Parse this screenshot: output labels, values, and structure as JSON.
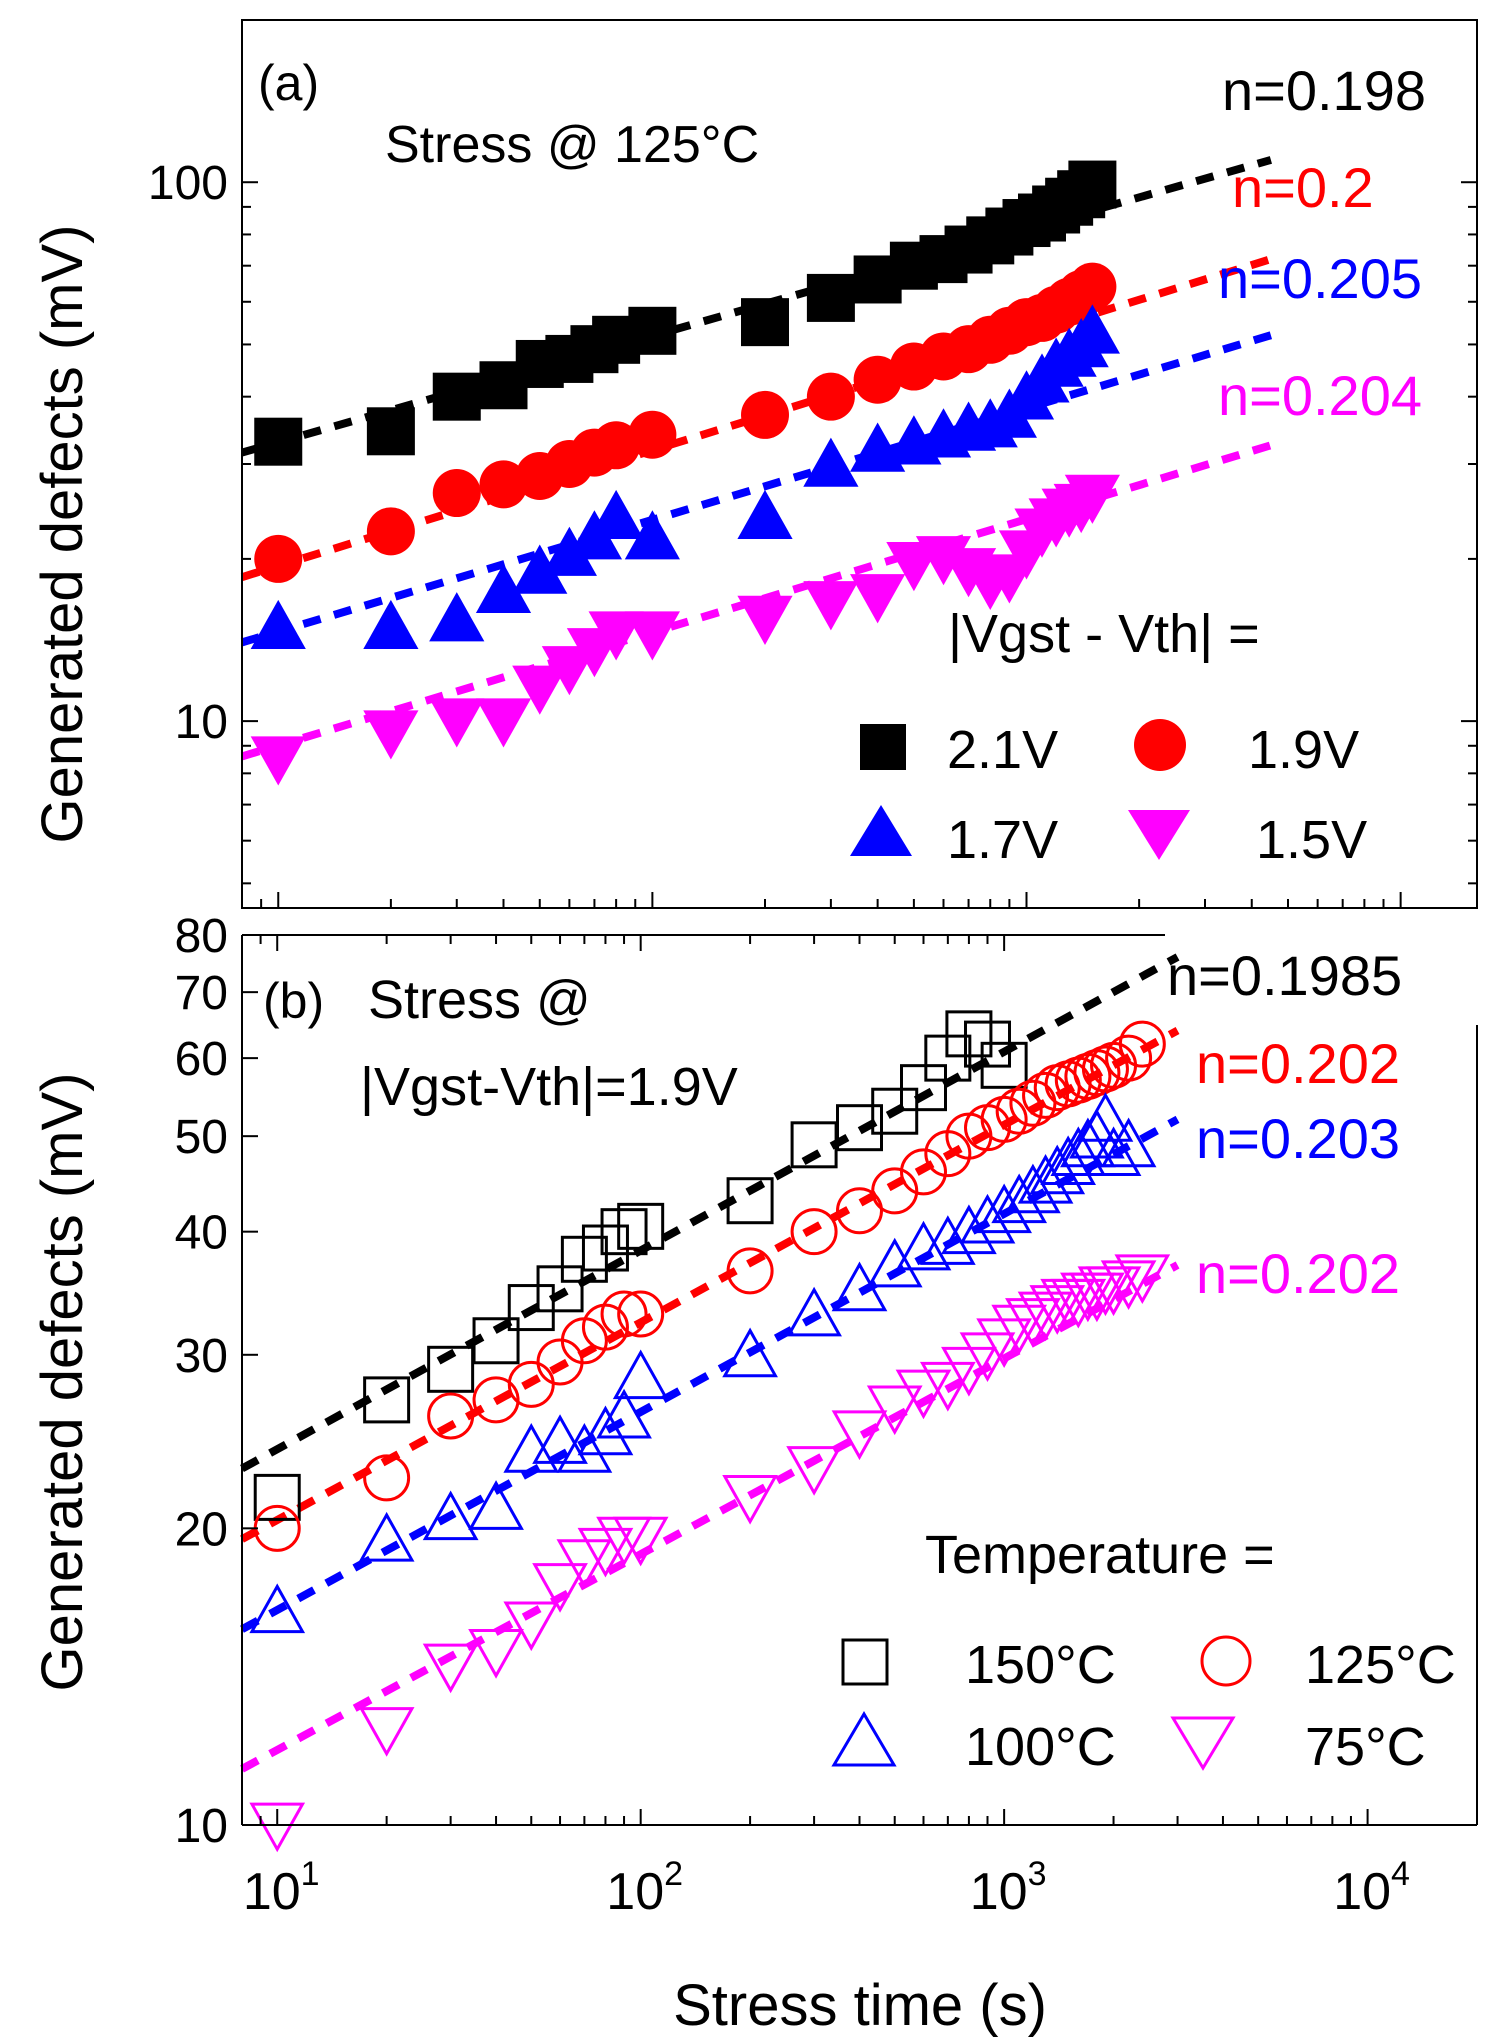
{
  "colors": {
    "black": "#000000",
    "red": "#ff0000",
    "blue": "#0000ff",
    "magenta": "#ff00ff"
  },
  "chart_data": [
    {
      "id": "a",
      "type": "scatter",
      "panel_label": "(a)",
      "title": "Stress @ 125°C",
      "ylabel": "Generated defects (mV)",
      "xlabel": "",
      "xscale": "log",
      "yscale": "log",
      "xlim": [
        8,
        16000
      ],
      "ylim": [
        4.5,
        200
      ],
      "y_ticks": [
        10,
        100
      ],
      "y_tick_labels": [
        "10",
        "100"
      ],
      "legend": {
        "title": "|Vgst - Vth| =",
        "placement": "bottom-right",
        "entries": [
          "2.1V",
          "1.9V",
          "1.7V",
          "1.5V"
        ]
      },
      "series": [
        {
          "name": "2.1V",
          "marker": "square",
          "filled": true,
          "color": "black",
          "fit_label": "n=0.198",
          "fit_line": {
            "x": [
              8,
              4500
            ],
            "y": [
              31.5,
              110
            ]
          },
          "x": [
            10,
            20,
            30,
            40,
            50,
            60,
            70,
            80,
            100,
            200,
            300,
            400,
            500,
            600,
            700,
            800,
            900,
            1000,
            1100,
            1200,
            1300,
            1400,
            1500
          ],
          "y": [
            33,
            34.5,
            40,
            42,
            46,
            47,
            49,
            51,
            53,
            55,
            61,
            66,
            70,
            72,
            75,
            78,
            81,
            84,
            86,
            89,
            92,
            95,
            99
          ]
        },
        {
          "name": "1.9V",
          "marker": "circle",
          "filled": true,
          "color": "red",
          "fit_label": "n=0.2",
          "fit_line": {
            "x": [
              8,
              4500
            ],
            "y": [
              18.5,
              72
            ]
          },
          "x": [
            10,
            20,
            30,
            40,
            50,
            60,
            70,
            80,
            100,
            200,
            300,
            400,
            500,
            600,
            700,
            800,
            900,
            1000,
            1100,
            1200,
            1300,
            1400,
            1500
          ],
          "y": [
            20,
            22.5,
            26.5,
            27.5,
            28.5,
            30,
            31.5,
            32.5,
            34,
            37,
            40,
            43,
            45.5,
            47.5,
            49,
            51,
            53,
            55,
            56,
            58,
            60,
            62,
            64
          ]
        },
        {
          "name": "1.7V",
          "marker": "triangle-up",
          "filled": true,
          "color": "blue",
          "fit_label": "n=0.205",
          "fit_line": {
            "x": [
              8,
              4500
            ],
            "y": [
              14,
              52
            ]
          },
          "x": [
            10,
            20,
            30,
            40,
            50,
            60,
            70,
            80,
            100,
            200,
            300,
            400,
            500,
            600,
            700,
            800,
            900,
            1000,
            1100,
            1200,
            1300,
            1400,
            1500
          ],
          "y": [
            15,
            15,
            15.5,
            17.5,
            19,
            20.5,
            22,
            24,
            22,
            24,
            30,
            32,
            33,
            34,
            35,
            35.5,
            37,
            40,
            43,
            46,
            48,
            50,
            53
          ]
        },
        {
          "name": "1.5V",
          "marker": "triangle-down",
          "filled": true,
          "color": "magenta",
          "fit_label": "n=0.204",
          "fit_line": {
            "x": [
              8,
              4500
            ],
            "y": [
              8.6,
              32.5
            ]
          },
          "x": [
            10,
            20,
            30,
            40,
            50,
            60,
            70,
            80,
            100,
            200,
            300,
            400,
            500,
            600,
            700,
            800,
            900,
            1000,
            1100,
            1200,
            1300,
            1400,
            1500
          ],
          "y": [
            8.5,
            9.5,
            10,
            10,
            11.5,
            12.5,
            13.5,
            14.5,
            14.5,
            15.5,
            16.5,
            17,
            19.5,
            20,
            19,
            18,
            18.5,
            20.5,
            22.5,
            23.5,
            24.5,
            25,
            26
          ]
        }
      ]
    },
    {
      "id": "b",
      "type": "scatter",
      "panel_label": "(b)",
      "title": [
        "Stress @",
        "|Vgst-Vth|=1.9V"
      ],
      "ylabel": "Generated defects (mV)",
      "xlabel": "Stress time (s)",
      "xscale": "log",
      "yscale": "log",
      "xlim": [
        8,
        20000
      ],
      "ylim": [
        10,
        80
      ],
      "y_ticks": [
        10,
        20,
        30,
        40,
        50,
        60,
        70,
        80
      ],
      "y_tick_labels": [
        "10",
        "20",
        "30",
        "40",
        "50",
        "60",
        "70",
        "80"
      ],
      "x_ticks": [
        10,
        100,
        1000,
        10000
      ],
      "x_tick_labels": [
        [
          "10",
          "1"
        ],
        [
          "10",
          "2"
        ],
        [
          "10",
          "3"
        ],
        [
          "10",
          "4"
        ]
      ],
      "legend": {
        "title": "Temperature =",
        "placement": "bottom-right",
        "entries": [
          "150°C",
          "125°C",
          "100°C",
          "75°C"
        ]
      },
      "series": [
        {
          "name": "150°C",
          "marker": "square",
          "filled": false,
          "color": "black",
          "fit_label": "n=0.1985",
          "fit_line": {
            "x": [
              8,
              3000
            ],
            "y": [
              23,
              76
            ]
          },
          "x": [
            10,
            20,
            30,
            40,
            50,
            60,
            70,
            80,
            90,
            100,
            200,
            300,
            400,
            500,
            600,
            700,
            800,
            900,
            1000
          ],
          "y": [
            21.5,
            27,
            29,
            31,
            33.5,
            35,
            37.5,
            38.5,
            40,
            40.5,
            43,
            49,
            51,
            53,
            56,
            60,
            63.5,
            62,
            59
          ]
        },
        {
          "name": "125°C",
          "marker": "circle",
          "filled": false,
          "color": "red",
          "fit_label": "n=0.202",
          "fit_line": {
            "x": [
              8,
              3000
            ],
            "y": [
              19.5,
              64
            ]
          },
          "x": [
            10,
            20,
            30,
            40,
            50,
            60,
            70,
            80,
            90,
            100,
            200,
            300,
            400,
            500,
            600,
            700,
            800,
            900,
            1000,
            1100,
            1200,
            1300,
            1400,
            1500,
            1600,
            1700,
            1800,
            1900,
            2000,
            2200,
            2400
          ],
          "y": [
            20,
            22.5,
            26,
            27,
            28,
            29.5,
            31,
            32,
            33,
            33,
            36.5,
            40,
            42,
            44,
            46,
            48,
            50,
            51,
            52,
            53,
            54,
            55,
            56,
            56.5,
            57,
            57.5,
            58,
            58.5,
            59,
            60,
            62
          ]
        },
        {
          "name": "100°C",
          "marker": "triangle-up",
          "filled": false,
          "color": "blue",
          "fit_label": "n=0.203",
          "fit_line": {
            "x": [
              8,
              3000
            ],
            "y": [
              15.8,
              52
            ]
          },
          "x": [
            10,
            20,
            30,
            40,
            50,
            60,
            70,
            80,
            90,
            100,
            200,
            300,
            400,
            500,
            600,
            700,
            800,
            900,
            1000,
            1100,
            1200,
            1300,
            1400,
            1500,
            1600,
            1700,
            1800,
            1900,
            2000,
            2200
          ],
          "y": [
            16.5,
            19.5,
            20.5,
            21,
            24,
            24.5,
            24,
            25,
            26,
            28.5,
            30,
            33,
            35,
            37,
            38.5,
            39,
            40,
            41,
            42,
            43,
            44,
            45,
            46,
            47,
            48,
            49,
            50,
            52,
            48,
            49
          ]
        },
        {
          "name": "75°C",
          "marker": "triangle-down",
          "filled": false,
          "color": "magenta",
          "fit_label": "n=0.202",
          "fit_line": {
            "x": [
              8,
              3000
            ],
            "y": [
              11.4,
              37
            ]
          },
          "x": [
            10,
            20,
            30,
            40,
            50,
            60,
            70,
            80,
            90,
            100,
            200,
            300,
            400,
            500,
            600,
            700,
            800,
            900,
            1000,
            1100,
            1200,
            1300,
            1400,
            1500,
            1600,
            1700,
            1800,
            1900,
            2000,
            2200,
            2400
          ],
          "y": [
            10,
            12.5,
            14.5,
            15,
            16,
            17.5,
            18.5,
            19,
            19.5,
            19.5,
            21.5,
            23,
            25,
            26.5,
            27.5,
            28,
            29,
            30,
            31,
            32,
            32.5,
            33,
            33.5,
            34,
            34,
            34.5,
            34.5,
            35,
            35,
            35.5,
            36
          ]
        }
      ]
    }
  ]
}
